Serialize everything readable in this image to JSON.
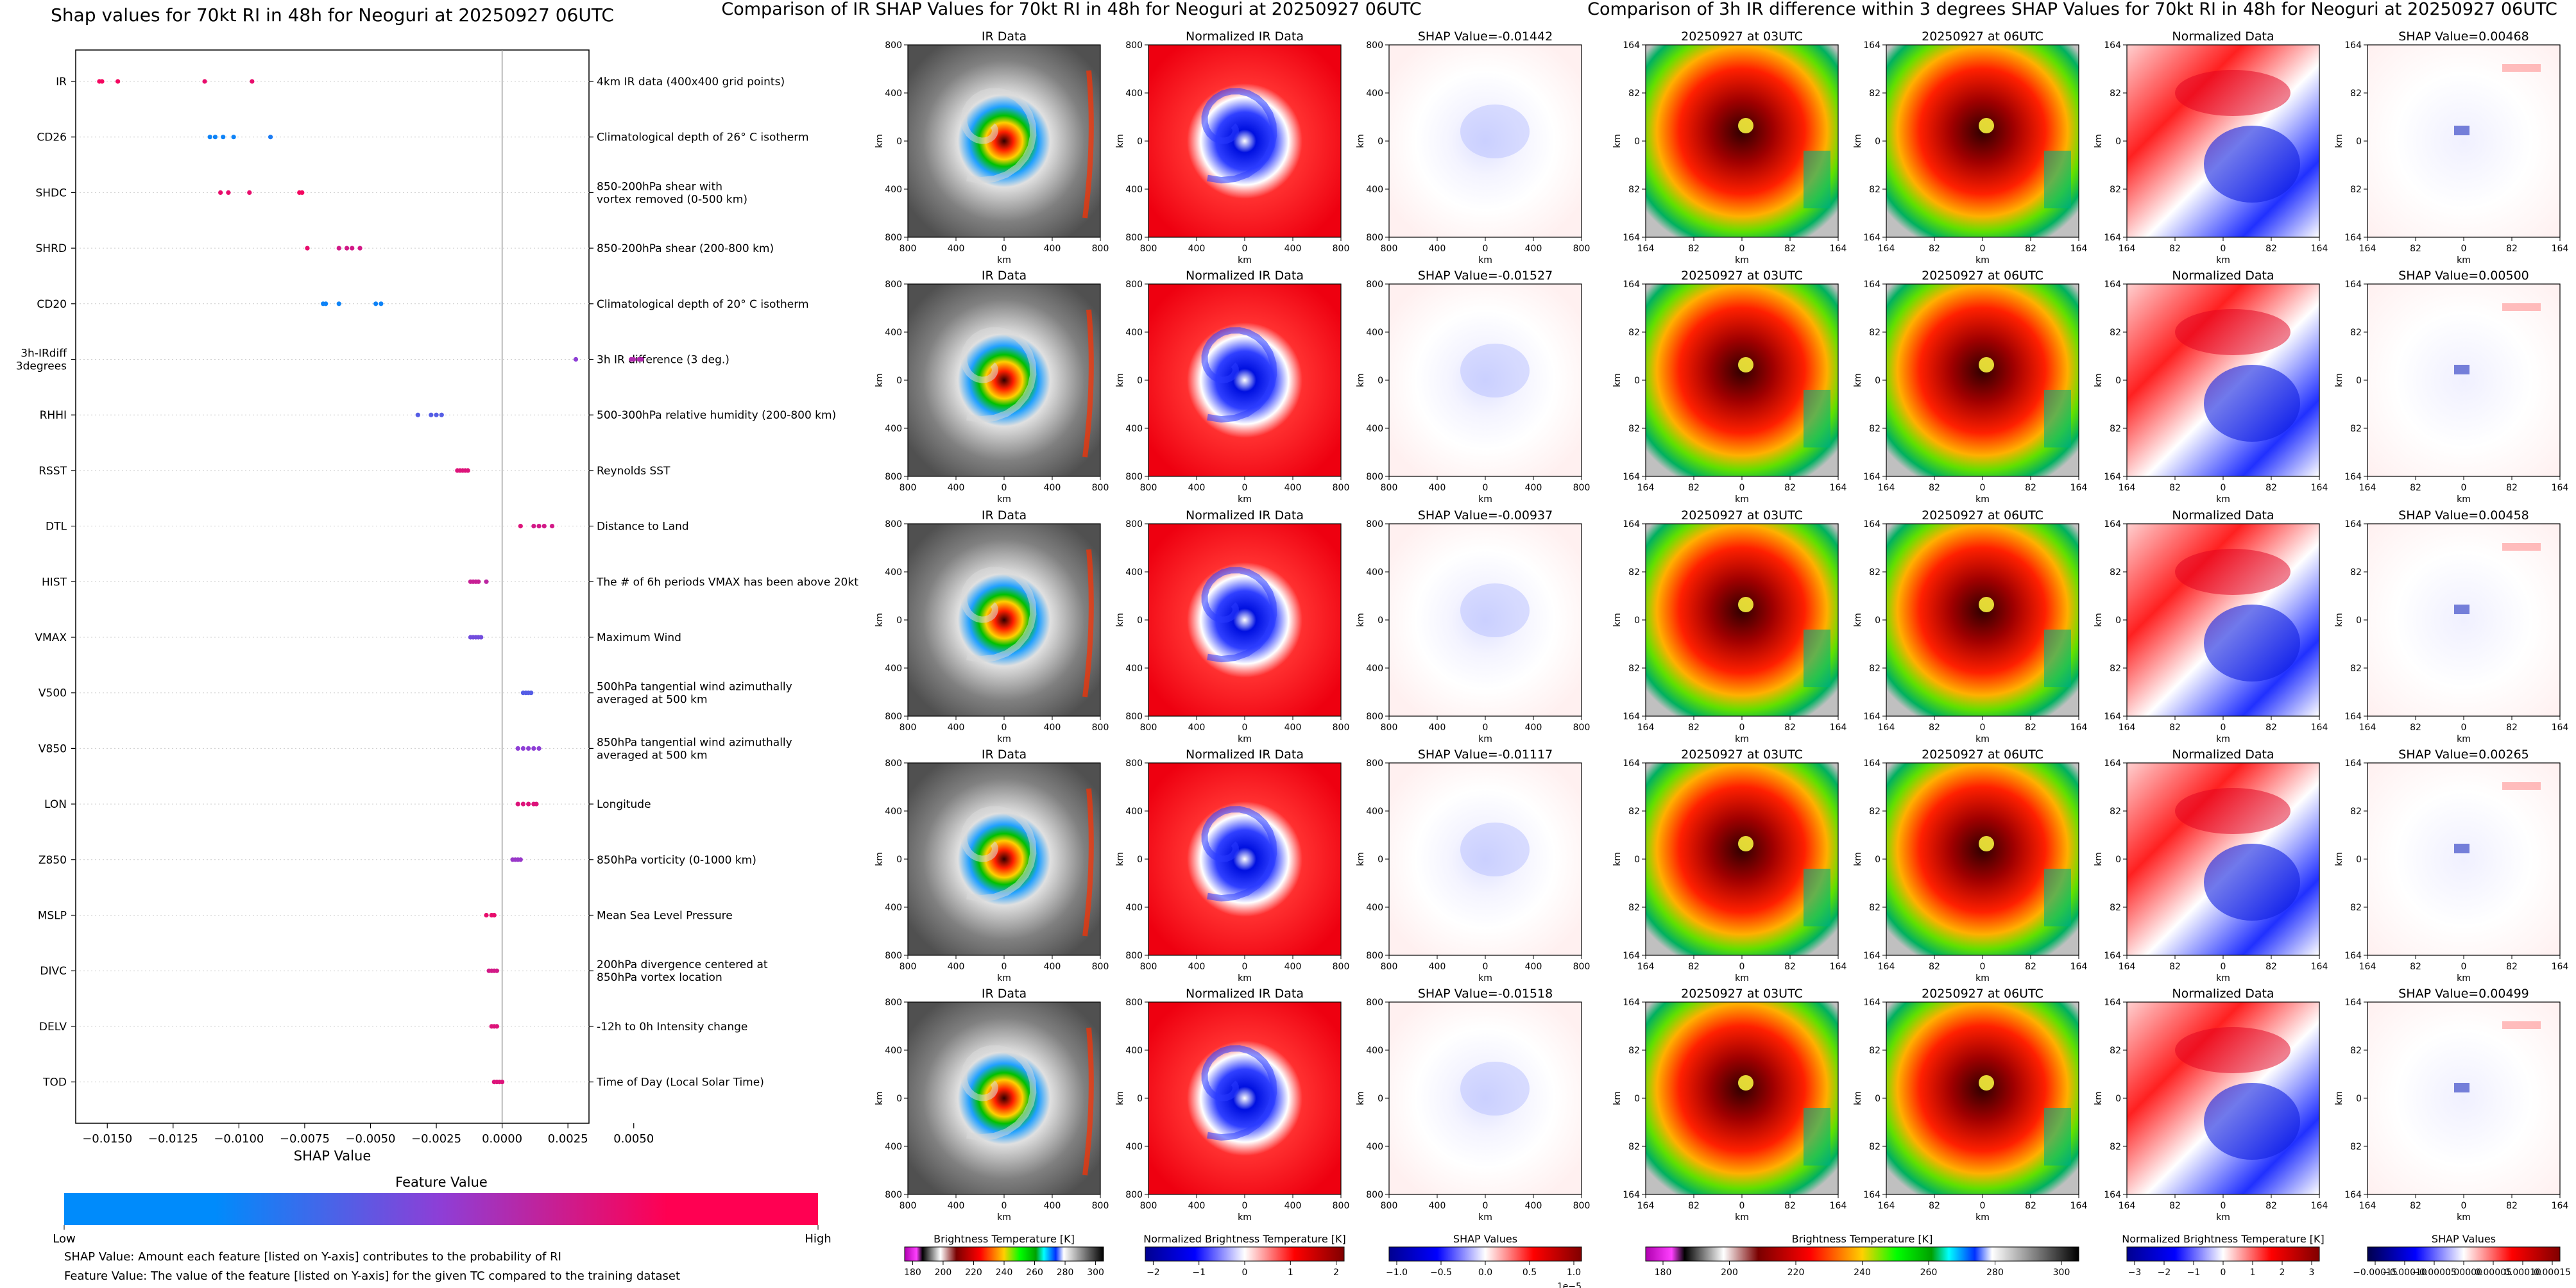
{
  "colors": {
    "feature_low": "#008bfb",
    "feature_mid": "#8e3ed6",
    "feature_high": "#ff0052",
    "ir_dark": "#3a3a3a",
    "norm_red": "#e8001a",
    "norm_blue": "#1020d8",
    "white": "#ffffff"
  },
  "chart_data": [
    {
      "type": "scatter",
      "title": "Shap values for 70kt RI in 48h for Neoguri at 20250927 06UTC",
      "xlabel": "SHAP Value",
      "xlim": [
        -0.0162,
        0.0033
      ],
      "x_ticks": [
        "−0.0150",
        "−0.0125",
        "−0.0100",
        "−0.0075",
        "−0.0050",
        "−0.0025",
        "0.0000",
        "0.0025",
        "0.0050"
      ],
      "x_tick_values": [
        -0.015,
        -0.0125,
        -0.01,
        -0.0075,
        -0.005,
        -0.0025,
        0.0,
        0.0025,
        0.005
      ],
      "features": [
        {
          "name": "IR",
          "desc": [
            "4km IR data (400x400 grid points)"
          ],
          "points": [
            [
              -0.0153,
              0.95
            ],
            [
              -0.0152,
              0.95
            ],
            [
              -0.0146,
              0.95
            ],
            [
              -0.0113,
              0.9
            ],
            [
              -0.0095,
              0.9
            ]
          ]
        },
        {
          "name": "CD26",
          "desc": [
            "Climatological depth of 26° C isotherm"
          ],
          "points": [
            [
              -0.0111,
              0.05
            ],
            [
              -0.0109,
              0.05
            ],
            [
              -0.0106,
              0.05
            ],
            [
              -0.0102,
              0.05
            ],
            [
              -0.0088,
              0.1
            ]
          ]
        },
        {
          "name": "SHDC",
          "desc": [
            "850-200hPa shear with",
            "vortex removed (0-500 km)"
          ],
          "points": [
            [
              -0.0107,
              0.9
            ],
            [
              -0.0104,
              0.9
            ],
            [
              -0.0096,
              0.9
            ],
            [
              -0.0077,
              0.95
            ],
            [
              -0.0076,
              0.95
            ]
          ]
        },
        {
          "name": "SHRD",
          "desc": [
            "850-200hPa shear (200-800 km)"
          ],
          "points": [
            [
              -0.0074,
              0.9
            ],
            [
              -0.0062,
              0.8
            ],
            [
              -0.0059,
              0.8
            ],
            [
              -0.0057,
              0.8
            ],
            [
              -0.0054,
              0.8
            ]
          ]
        },
        {
          "name": "CD20",
          "desc": [
            "Climatological depth of 20° C isotherm"
          ],
          "points": [
            [
              -0.0068,
              0.05
            ],
            [
              -0.0067,
              0.05
            ],
            [
              -0.0062,
              0.05
            ],
            [
              -0.0048,
              0.05
            ],
            [
              -0.0046,
              0.05
            ]
          ]
        },
        {
          "name": "3h-IRdiff\n3degrees",
          "label_lines": [
            "3h-IRdiff",
            "3degrees"
          ],
          "desc": [
            "3h IR difference (3 deg.)"
          ],
          "points": [
            [
              0.0028,
              0.5
            ],
            [
              0.0049,
              0.65
            ],
            [
              0.005,
              0.65
            ],
            [
              0.0052,
              0.65
            ],
            [
              0.0053,
              0.65
            ]
          ]
        },
        {
          "name": "RHHI",
          "desc": [
            "500-300hPa relative humidity (200-800 km)"
          ],
          "points": [
            [
              -0.0032,
              0.3
            ],
            [
              -0.0027,
              0.3
            ],
            [
              -0.0025,
              0.3
            ],
            [
              -0.0023,
              0.3
            ]
          ]
        },
        {
          "name": "RSST",
          "desc": [
            "Reynolds SST"
          ],
          "points": [
            [
              -0.0017,
              0.85
            ],
            [
              -0.0016,
              0.85
            ],
            [
              -0.0015,
              0.85
            ],
            [
              -0.0014,
              0.85
            ],
            [
              -0.0013,
              0.85
            ]
          ]
        },
        {
          "name": "DTL",
          "desc": [
            "Distance to Land"
          ],
          "points": [
            [
              0.0007,
              0.85
            ],
            [
              0.0012,
              0.8
            ],
            [
              0.0014,
              0.8
            ],
            [
              0.0016,
              0.8
            ],
            [
              0.0019,
              0.8
            ]
          ]
        },
        {
          "name": "HIST",
          "desc": [
            "The # of 6h periods VMAX has been above 20kt"
          ],
          "points": [
            [
              -0.0012,
              0.75
            ],
            [
              -0.0011,
              0.75
            ],
            [
              -0.001,
              0.75
            ],
            [
              -0.0009,
              0.75
            ],
            [
              -0.0006,
              0.7
            ]
          ]
        },
        {
          "name": "VMAX",
          "desc": [
            "Maximum Wind"
          ],
          "points": [
            [
              -0.0012,
              0.4
            ],
            [
              -0.0011,
              0.4
            ],
            [
              -0.001,
              0.4
            ],
            [
              -0.0009,
              0.4
            ],
            [
              -0.0008,
              0.4
            ]
          ]
        },
        {
          "name": "V500",
          "desc": [
            "500hPa tangential wind azimuthally",
            "averaged at 500 km"
          ],
          "points": [
            [
              0.0008,
              0.3
            ],
            [
              0.0009,
              0.3
            ],
            [
              0.001,
              0.3
            ],
            [
              0.0011,
              0.3
            ]
          ]
        },
        {
          "name": "V850",
          "desc": [
            "850hPa tangential wind azimuthally",
            "averaged at 500 km"
          ],
          "points": [
            [
              0.0006,
              0.5
            ],
            [
              0.0008,
              0.5
            ],
            [
              0.001,
              0.5
            ],
            [
              0.0012,
              0.5
            ],
            [
              0.0014,
              0.5
            ]
          ]
        },
        {
          "name": "LON",
          "desc": [
            "Longitude"
          ],
          "points": [
            [
              0.0006,
              0.85
            ],
            [
              0.0008,
              0.85
            ],
            [
              0.001,
              0.85
            ],
            [
              0.0012,
              0.85
            ],
            [
              0.0013,
              0.85
            ]
          ]
        },
        {
          "name": "Z850",
          "desc": [
            "850hPa vorticity (0-1000 km)"
          ],
          "points": [
            [
              0.0004,
              0.55
            ],
            [
              0.0005,
              0.55
            ],
            [
              0.0006,
              0.55
            ],
            [
              0.0007,
              0.55
            ]
          ]
        },
        {
          "name": "MSLP",
          "desc": [
            "Mean Sea Level Pressure"
          ],
          "points": [
            [
              -0.0006,
              0.9
            ],
            [
              -0.0004,
              0.9
            ],
            [
              -0.0003,
              0.9
            ]
          ]
        },
        {
          "name": "DIVC",
          "desc": [
            "200hPa divergence centered at",
            "850hPa vortex location"
          ],
          "points": [
            [
              -0.0005,
              0.8
            ],
            [
              -0.0004,
              0.8
            ],
            [
              -0.0003,
              0.8
            ],
            [
              -0.0002,
              0.8
            ]
          ]
        },
        {
          "name": "DELV",
          "desc": [
            "-12h to 0h Intensity change"
          ],
          "points": [
            [
              -0.0004,
              0.85
            ],
            [
              -0.0003,
              0.85
            ],
            [
              -0.0002,
              0.85
            ]
          ]
        },
        {
          "name": "TOD",
          "desc": [
            "Time of Day (Local Solar Time)"
          ],
          "points": [
            [
              -0.0003,
              0.85
            ],
            [
              -0.0002,
              0.85
            ],
            [
              -0.0001,
              0.85
            ],
            [
              0.0,
              0.85
            ]
          ]
        }
      ],
      "colorbar": {
        "title": "Feature Value",
        "low": "Low",
        "high": "High"
      },
      "notes": [
        "SHAP Value: Amount each feature [listed on Y-axis] contributes to the probability of RI",
        "Feature Value: The value of the feature [listed on Y-axis] for the given TC compared to the training dataset"
      ]
    },
    {
      "type": "heatmap",
      "title": "Comparison of IR SHAP Values for 70kt RI in 48h for Neoguri at 20250927 06UTC",
      "rows": [
        {
          "ir": "IR Data",
          "norm": "Normalized IR Data",
          "shap": "SHAP Value=-0.01442"
        },
        {
          "ir": "IR Data",
          "norm": "Normalized IR Data",
          "shap": "SHAP Value=-0.01527"
        },
        {
          "ir": "IR Data",
          "norm": "Normalized IR Data",
          "shap": "SHAP Value=-0.00937"
        },
        {
          "ir": "IR Data",
          "norm": "Normalized IR Data",
          "shap": "SHAP Value=-0.01117"
        },
        {
          "ir": "IR Data",
          "norm": "Normalized IR Data",
          "shap": "SHAP Value=-0.01518"
        }
      ],
      "axis_label": "km",
      "x_ticks": [
        "800",
        "400",
        "0",
        "400",
        "800"
      ],
      "y_ticks": [
        "800",
        "400",
        "0",
        "400",
        "800"
      ],
      "colorbars": [
        {
          "label": "Brightness Temperature [K]",
          "ticks": [
            "180",
            "200",
            "220",
            "240",
            "260",
            "280",
            "300"
          ]
        },
        {
          "label": "Normalized Brightness Temperature [K]",
          "ticks": [
            "−2",
            "−1",
            "0",
            "1",
            "2"
          ]
        },
        {
          "label": "SHAP Values",
          "ticks": [
            "−1.0",
            "−0.5",
            "0.0",
            "0.5",
            "1.0"
          ],
          "exponent": "1e−5"
        }
      ]
    },
    {
      "type": "heatmap",
      "title": "Comparison of 3h IR difference within 3 degrees SHAP Values for 70kt RI in 48h for Neoguri at 20250927 06UTC",
      "rows": [
        {
          "t1": "20250927 at 03UTC",
          "t2": "20250927 at 06UTC",
          "norm": "Normalized Data",
          "shap": "SHAP Value=0.00468"
        },
        {
          "t1": "20250927 at 03UTC",
          "t2": "20250927 at 06UTC",
          "norm": "Normalized Data",
          "shap": "SHAP Value=0.00500"
        },
        {
          "t1": "20250927 at 03UTC",
          "t2": "20250927 at 06UTC",
          "norm": "Normalized Data",
          "shap": "SHAP Value=0.00458"
        },
        {
          "t1": "20250927 at 03UTC",
          "t2": "20250927 at 06UTC",
          "norm": "Normalized Data",
          "shap": "SHAP Value=0.00265"
        },
        {
          "t1": "20250927 at 03UTC",
          "t2": "20250927 at 06UTC",
          "norm": "Normalized Data",
          "shap": "SHAP Value=0.00499"
        }
      ],
      "axis_label": "km",
      "x_ticks": [
        "164",
        "82",
        "0",
        "82",
        "164"
      ],
      "y_ticks": [
        "164",
        "82",
        "0",
        "82",
        "164"
      ],
      "colorbars": [
        {
          "label": "Brightness Temperature [K]",
          "ticks": [
            "180",
            "200",
            "220",
            "240",
            "260",
            "280",
            "300"
          ]
        },
        {
          "label": "Normalized Brightness Temperature [K]",
          "ticks": [
            "−3",
            "−2",
            "−1",
            "0",
            "1",
            "2",
            "3"
          ]
        },
        {
          "label": "SHAP Values",
          "ticks": [
            "−0.00015",
            "−0.00010",
            "−0.00005",
            "0.00000",
            "0.00005",
            "0.00010",
            "0.00015"
          ]
        }
      ]
    }
  ]
}
